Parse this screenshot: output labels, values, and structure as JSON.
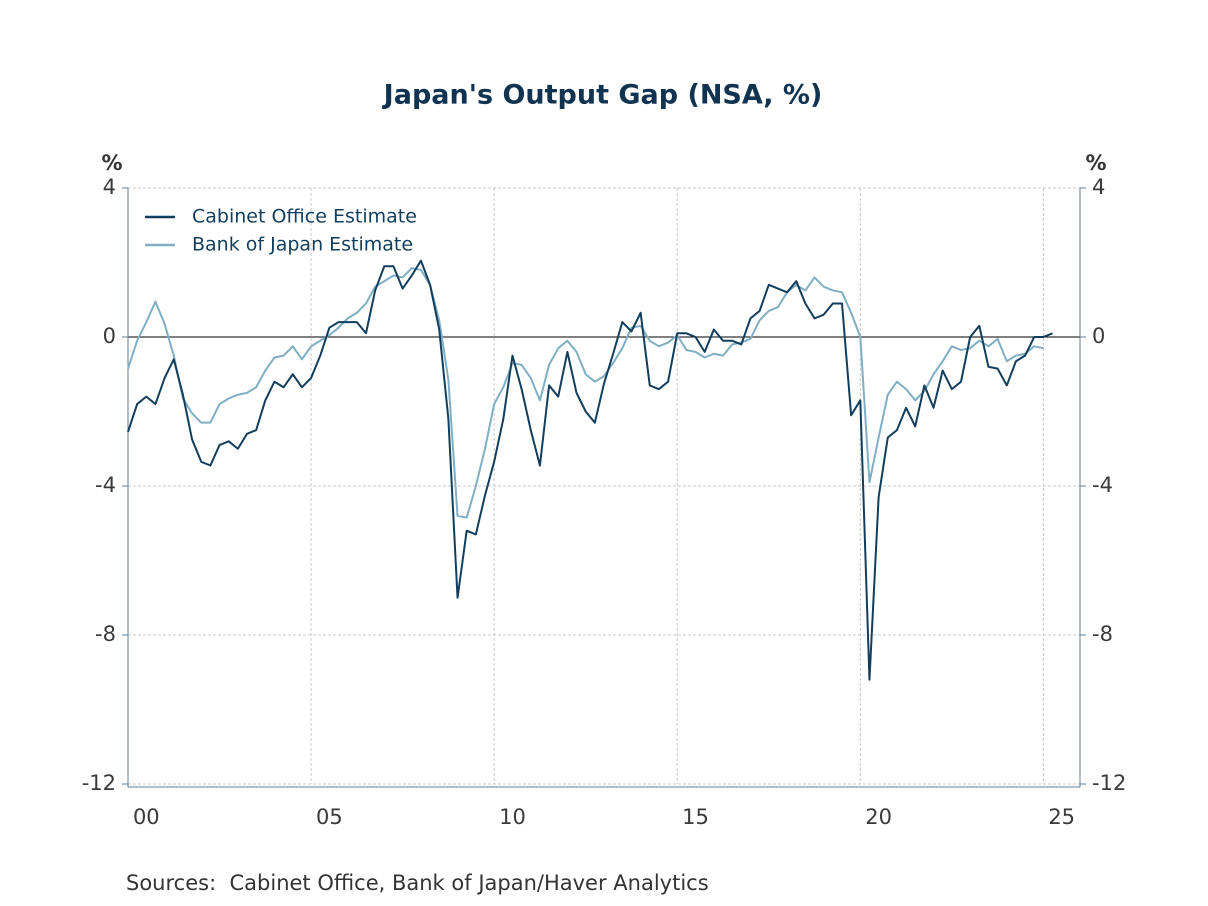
{
  "chart_data": {
    "type": "line",
    "title": "Japan's Output Gap (NSA, %)",
    "ylabel": "%",
    "source": "Sources:  Cabinet Office, Bank of Japan/Haver Analytics",
    "legend": "upper left",
    "grid": true,
    "xlim": [
      2000,
      2026
    ],
    "ylim": [
      -12,
      4
    ],
    "yticks": [
      4,
      0,
      -4,
      -8,
      -12
    ],
    "xticks": [
      {
        "value": 2000,
        "label": "00"
      },
      {
        "value": 2005,
        "label": "05"
      },
      {
        "value": 2010,
        "label": "10"
      },
      {
        "value": 2015,
        "label": "15"
      },
      {
        "value": 2020,
        "label": "20"
      },
      {
        "value": 2025,
        "label": "25"
      }
    ],
    "x": [
      2000,
      2000.25,
      2000.5,
      2000.75,
      2001,
      2001.25,
      2001.5,
      2001.75,
      2002,
      2002.25,
      2002.5,
      2002.75,
      2003,
      2003.25,
      2003.5,
      2003.75,
      2004,
      2004.25,
      2004.5,
      2004.75,
      2005,
      2005.25,
      2005.5,
      2005.75,
      2006,
      2006.25,
      2006.5,
      2006.75,
      2007,
      2007.25,
      2007.5,
      2007.75,
      2008,
      2008.25,
      2008.5,
      2008.75,
      2009,
      2009.25,
      2009.5,
      2009.75,
      2010,
      2010.25,
      2010.5,
      2010.75,
      2011,
      2011.25,
      2011.5,
      2011.75,
      2012,
      2012.25,
      2012.5,
      2012.75,
      2013,
      2013.25,
      2013.5,
      2013.75,
      2014,
      2014.25,
      2014.5,
      2014.75,
      2015,
      2015.25,
      2015.5,
      2015.75,
      2016,
      2016.25,
      2016.5,
      2016.75,
      2017,
      2017.25,
      2017.5,
      2017.75,
      2018,
      2018.25,
      2018.5,
      2018.75,
      2019,
      2019.25,
      2019.5,
      2019.75,
      2020,
      2020.25,
      2020.5,
      2020.75,
      2021,
      2021.25,
      2021.5,
      2021.75,
      2022,
      2022.25,
      2022.5,
      2022.75,
      2023,
      2023.25,
      2023.5,
      2023.75,
      2024,
      2024.25,
      2024.5,
      2024.75,
      2025,
      2025.25
    ],
    "series": [
      {
        "name": "Cabinet Office Estimate",
        "color": "#123e5e",
        "values": [
          -2.55,
          -1.8,
          -1.6,
          -1.8,
          -1.1,
          -0.6,
          -1.55,
          -2.75,
          -3.35,
          -3.45,
          -2.9,
          -2.8,
          -3.0,
          -2.6,
          -2.5,
          -1.7,
          -1.2,
          -1.35,
          -1.0,
          -1.35,
          -1.1,
          -0.5,
          0.25,
          0.4,
          0.4,
          0.4,
          0.1,
          1.25,
          1.9,
          1.9,
          1.3,
          1.65,
          2.05,
          1.4,
          0.2,
          -2.2,
          -7.0,
          -5.2,
          -5.3,
          -4.25,
          -3.35,
          -2.2,
          -0.5,
          -1.4,
          -2.5,
          -3.45,
          -1.3,
          -1.6,
          -0.4,
          -1.5,
          -2.0,
          -2.3,
          -1.25,
          -0.45,
          0.4,
          0.15,
          0.65,
          -1.3,
          -1.4,
          -1.2,
          0.1,
          0.1,
          0.0,
          -0.4,
          0.2,
          -0.1,
          -0.1,
          -0.2,
          0.5,
          0.7,
          1.4,
          1.3,
          1.2,
          1.5,
          0.9,
          0.5,
          0.6,
          0.9,
          0.9,
          -2.1,
          -1.7,
          -9.2,
          -4.3,
          -2.7,
          -2.5,
          -1.9,
          -2.4,
          -1.3,
          -1.9,
          -0.9,
          -1.4,
          -1.2,
          0.0,
          0.3,
          -0.8,
          -0.85,
          -1.3,
          -0.65,
          -0.5,
          0.0,
          0.0,
          0.1
        ]
      },
      {
        "name": "Bank of Japan Estimate",
        "color": "#7fafc4",
        "values": [
          -0.85,
          -0.1,
          0.4,
          0.95,
          0.35,
          -0.5,
          -1.65,
          -2.05,
          -2.3,
          -2.3,
          -1.8,
          -1.65,
          -1.55,
          -1.5,
          -1.35,
          -0.9,
          -0.55,
          -0.5,
          -0.25,
          -0.6,
          -0.25,
          -0.1,
          0.05,
          0.25,
          0.5,
          0.65,
          0.9,
          1.35,
          1.5,
          1.65,
          1.6,
          1.85,
          1.8,
          1.4,
          0.45,
          -1.15,
          -4.8,
          -4.85,
          -4.0,
          -3.0,
          -1.8,
          -1.35,
          -0.7,
          -0.75,
          -1.1,
          -1.7,
          -0.75,
          -0.3,
          -0.1,
          -0.4,
          -1.0,
          -1.2,
          -1.05,
          -0.7,
          -0.3,
          0.25,
          0.3,
          -0.1,
          -0.25,
          -0.15,
          0.05,
          -0.35,
          -0.4,
          -0.55,
          -0.45,
          -0.5,
          -0.2,
          -0.15,
          -0.05,
          0.45,
          0.7,
          0.8,
          1.2,
          1.4,
          1.25,
          1.6,
          1.35,
          1.25,
          1.2,
          0.65,
          0.0,
          -3.9,
          -2.7,
          -1.55,
          -1.2,
          -1.4,
          -1.7,
          -1.45,
          -1.0,
          -0.65,
          -0.25,
          -0.35,
          -0.3,
          -0.1,
          -0.25,
          -0.05,
          -0.65,
          -0.5,
          -0.45,
          -0.25,
          -0.3,
          null
        ]
      }
    ]
  }
}
